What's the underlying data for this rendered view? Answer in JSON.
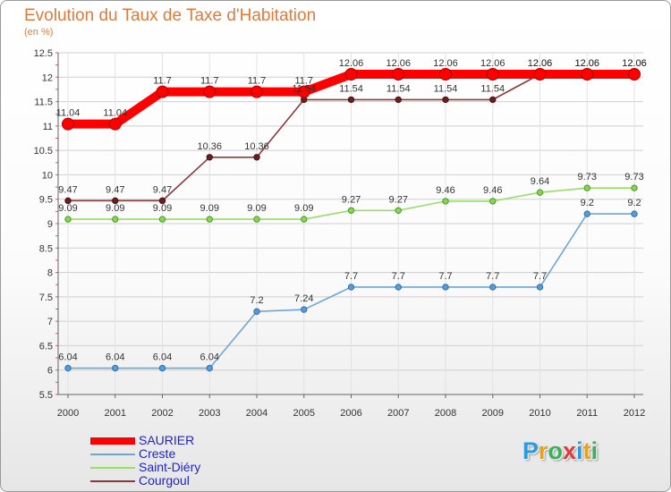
{
  "title": "Evolution du Taux de Taxe d'Habitation",
  "unit": "(en %)",
  "logo": {
    "text": "Proxiti",
    "colors": [
      "#2b9be0",
      "#e8a020",
      "#3ab05a",
      "#e03a3a",
      "#2b9be0",
      "#e8a020",
      "#3ab05a"
    ]
  },
  "chart_data": {
    "type": "line",
    "title": "Evolution du Taux de Taxe d'Habitation",
    "ylabel": "(en %)",
    "xlabel": "",
    "ylim": [
      5.5,
      12.5
    ],
    "yticks": [
      "5.5",
      "6",
      "6.5",
      "7",
      "7.5",
      "8",
      "8.5",
      "9",
      "9.5",
      "10",
      "10.5",
      "11",
      "11.5",
      "12",
      "12.5"
    ],
    "x": [
      "2000",
      "2001",
      "2002",
      "2003",
      "2004",
      "2005",
      "2006",
      "2007",
      "2008",
      "2009",
      "2010",
      "2011",
      "2012"
    ],
    "legend_position": "bottom-left",
    "series": [
      {
        "name": "SAURIER",
        "color": "#ff0000",
        "values": [
          11.04,
          11.04,
          11.7,
          11.7,
          11.7,
          11.7,
          12.06,
          12.06,
          12.06,
          12.06,
          12.06,
          12.06,
          12.06
        ],
        "labels": [
          "11.04",
          "11.04",
          "11.7",
          "11.7",
          "11.7",
          "11.7",
          "12.06",
          "12.06",
          "12.06",
          "12.06",
          "12.06",
          "12.06",
          "12.06"
        ]
      },
      {
        "name": "Creste",
        "color": "#6fa5d6",
        "values": [
          6.04,
          6.04,
          6.04,
          6.04,
          7.2,
          7.24,
          7.7,
          7.7,
          7.7,
          7.7,
          7.7,
          9.2,
          9.2
        ],
        "labels": [
          "6.04",
          "6.04",
          "6.04",
          "6.04",
          "7.2",
          "7.24",
          "7.7",
          "7.7",
          "7.7",
          "7.7",
          "7.7",
          "9.2",
          "9.2"
        ]
      },
      {
        "name": "Saint-Diéry",
        "color": "#99dd66",
        "values": [
          9.09,
          9.09,
          9.09,
          9.09,
          9.09,
          9.09,
          9.27,
          9.27,
          9.46,
          9.46,
          9.64,
          9.73,
          9.73
        ],
        "labels": [
          "9.09",
          "9.09",
          "9.09",
          "9.09",
          "9.09",
          "9.09",
          "9.27",
          "9.27",
          "9.46",
          "9.46",
          "9.64",
          "9.73",
          "9.73"
        ]
      },
      {
        "name": "Courgoul",
        "color": "#8b3a3a",
        "values": [
          9.47,
          9.47,
          9.47,
          10.36,
          10.36,
          11.54,
          11.54,
          11.54,
          11.54,
          11.54,
          12.06,
          12.06,
          12.06
        ],
        "labels": [
          "9.47",
          "9.47",
          "9.47",
          "10.36",
          "10.36",
          "11.54",
          "11.54",
          "11.54",
          "11.54",
          "11.54",
          "12.06",
          "12.06",
          "12.06"
        ]
      }
    ]
  }
}
